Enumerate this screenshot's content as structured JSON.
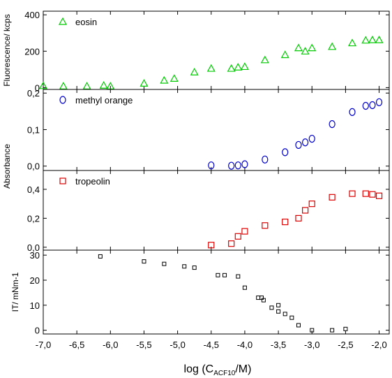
{
  "chart_data": {
    "type": "scatter",
    "x_axis": {
      "label_main": "log (C",
      "label_sub": "ACF10",
      "label_end": "/M)",
      "range": [
        -7.0,
        -1.85
      ],
      "ticks": [
        -7.0,
        -6.5,
        -6.0,
        -5.5,
        -5.0,
        -4.5,
        -4.0,
        -3.5,
        -3.0,
        -2.5,
        -2.0
      ],
      "tick_labels": [
        "-7,0",
        "-6,5",
        "-6,0",
        "-5,5",
        "-5,0",
        "-4,5",
        "-4,0",
        "-3,5",
        "-3,0",
        "-2,5",
        "-2,0"
      ]
    },
    "panels": [
      {
        "id": "eosin",
        "annotation": "eosin",
        "ylabel": "Fluorescence/ kcps",
        "ylim": [
          -10,
          420
        ],
        "yticks": [
          0,
          200,
          400
        ],
        "ytick_labels": [
          "0",
          "200",
          "400"
        ],
        "marker": "triangle",
        "color": "#00cc00",
        "points": [
          [
            -7.0,
            10
          ],
          [
            -6.7,
            8
          ],
          [
            -6.35,
            8
          ],
          [
            -6.1,
            12
          ],
          [
            -6.0,
            8
          ],
          [
            -5.5,
            23
          ],
          [
            -5.2,
            40
          ],
          [
            -5.05,
            50
          ],
          [
            -4.75,
            85
          ],
          [
            -4.5,
            105
          ],
          [
            -4.2,
            105
          ],
          [
            -4.1,
            112
          ],
          [
            -4.0,
            115
          ],
          [
            -3.7,
            152
          ],
          [
            -3.4,
            180
          ],
          [
            -3.2,
            218
          ],
          [
            -3.1,
            200
          ],
          [
            -3.0,
            218
          ],
          [
            -2.7,
            225
          ],
          [
            -2.4,
            245
          ],
          [
            -2.2,
            260
          ],
          [
            -2.1,
            262
          ],
          [
            -2.0,
            262
          ]
        ]
      },
      {
        "id": "methyl-orange",
        "annotation": "methyl orange",
        "ylabel": "Absorbance",
        "ylim": [
          -0.012,
          0.21
        ],
        "yticks": [
          0.0,
          0.1,
          0.2
        ],
        "ytick_labels": [
          "0,0",
          "0,1",
          "0,2"
        ],
        "marker": "circle",
        "color": "#0000cc",
        "points": [
          [
            -4.5,
            0.002
          ],
          [
            -4.2,
            0.001
          ],
          [
            -4.1,
            0.002
          ],
          [
            -4.0,
            0.005
          ],
          [
            -3.7,
            0.018
          ],
          [
            -3.4,
            0.038
          ],
          [
            -3.2,
            0.058
          ],
          [
            -3.1,
            0.065
          ],
          [
            -3.0,
            0.075
          ],
          [
            -2.7,
            0.115
          ],
          [
            -2.4,
            0.148
          ],
          [
            -2.2,
            0.165
          ],
          [
            -2.1,
            0.167
          ],
          [
            -2.0,
            0.175
          ]
        ]
      },
      {
        "id": "tropeolin",
        "annotation": "tropeolin",
        "ylabel": "",
        "ylim": [
          -0.02,
          0.53
        ],
        "yticks": [
          0.0,
          0.2,
          0.4
        ],
        "ytick_labels": [
          "0,0",
          "0,2",
          "0,4"
        ],
        "marker": "square",
        "color": "#dd0000",
        "points": [
          [
            -4.5,
            0.015
          ],
          [
            -4.2,
            0.025
          ],
          [
            -4.1,
            0.075
          ],
          [
            -4.0,
            0.11
          ],
          [
            -3.7,
            0.15
          ],
          [
            -3.4,
            0.175
          ],
          [
            -3.2,
            0.2
          ],
          [
            -3.1,
            0.255
          ],
          [
            -3.0,
            0.3
          ],
          [
            -2.7,
            0.345
          ],
          [
            -2.4,
            0.37
          ],
          [
            -2.2,
            0.37
          ],
          [
            -2.1,
            0.365
          ],
          [
            -2.0,
            0.355
          ]
        ]
      },
      {
        "id": "surface-pressure",
        "annotation": "",
        "ylabel": "IT/ mNm-1",
        "ylim": [
          -1.5,
          32
        ],
        "yticks": [
          0,
          10,
          20,
          30
        ],
        "ytick_labels": [
          "0",
          "10",
          "20",
          "30"
        ],
        "marker": "square-small",
        "color": "#000000",
        "points": [
          [
            -6.15,
            29.5
          ],
          [
            -5.5,
            27.5
          ],
          [
            -5.2,
            26.5
          ],
          [
            -4.9,
            25.5
          ],
          [
            -4.75,
            25
          ],
          [
            -4.4,
            22
          ],
          [
            -4.3,
            22
          ],
          [
            -4.1,
            21.5
          ],
          [
            -4.0,
            17
          ],
          [
            -3.8,
            13
          ],
          [
            -3.75,
            13
          ],
          [
            -3.72,
            12
          ],
          [
            -3.6,
            9
          ],
          [
            -3.5,
            10
          ],
          [
            -3.5,
            7.5
          ],
          [
            -3.4,
            6.5
          ],
          [
            -3.3,
            5
          ],
          [
            -3.2,
            2
          ],
          [
            -3.0,
            0
          ],
          [
            -2.7,
            0
          ],
          [
            -2.5,
            0.5
          ]
        ]
      }
    ],
    "grid": false,
    "legend": "none"
  }
}
